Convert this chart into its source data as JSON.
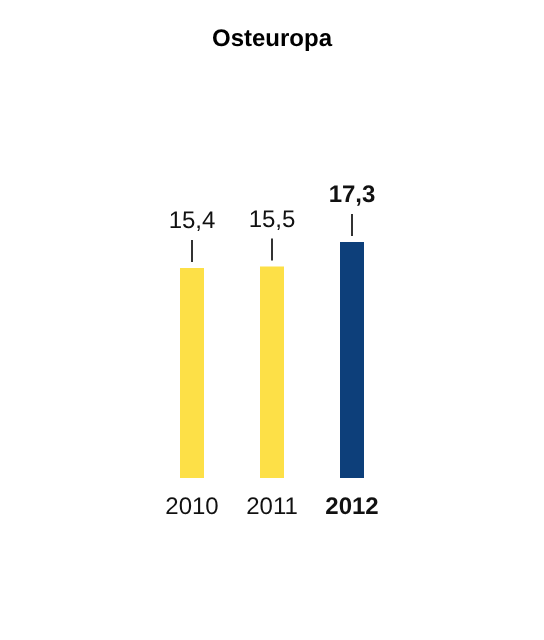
{
  "chart_data": {
    "type": "bar",
    "title": "Osteuropa",
    "categories": [
      "2010",
      "2011",
      "2012"
    ],
    "values": [
      15.4,
      15.5,
      17.3
    ],
    "colors": [
      "#fde047",
      "#fde047",
      "#0d3f7a"
    ],
    "value_labels": [
      "15,4",
      "15,5",
      "17,3"
    ]
  }
}
